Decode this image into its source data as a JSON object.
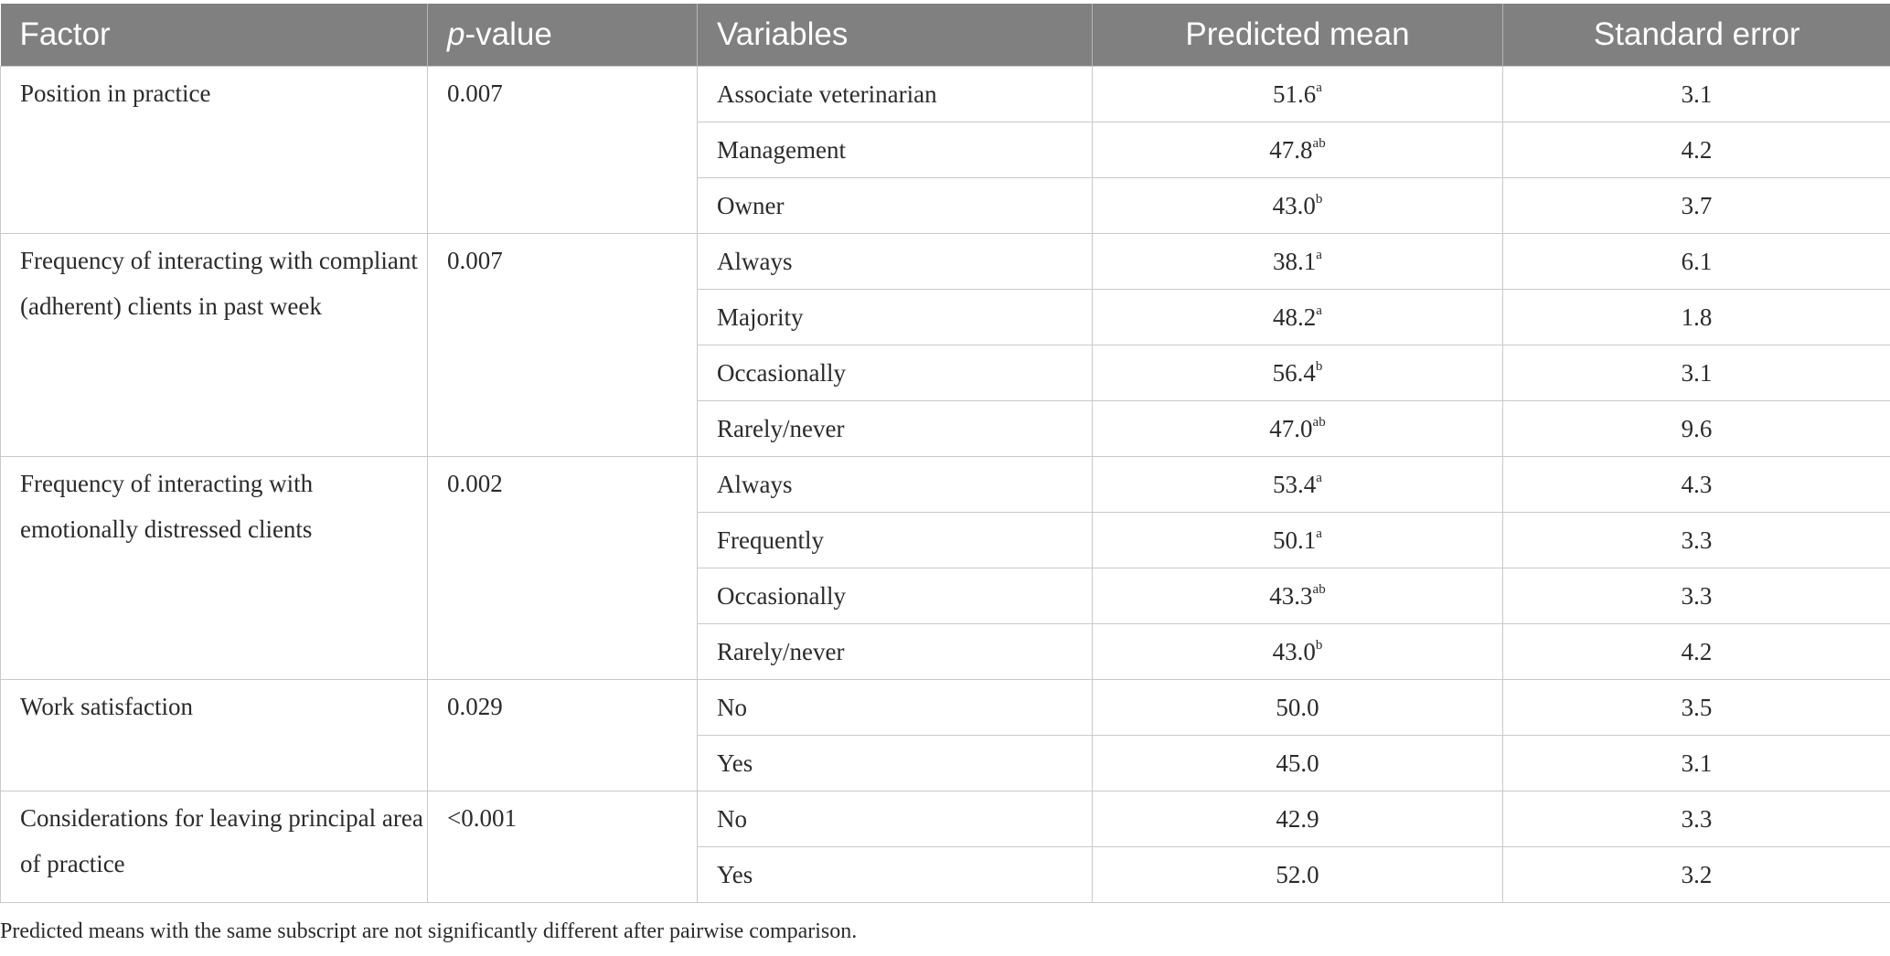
{
  "table": {
    "headers": {
      "factor": "Factor",
      "p_value_p": "p",
      "p_value_rest": "-value",
      "variables": "Variables",
      "predicted_mean": "Predicted mean",
      "standard_error": "Standard error"
    },
    "groups": [
      {
        "factor": "Position in practice",
        "p_value": "0.007",
        "rows": [
          {
            "variable": "Associate veterinarian",
            "mean": "51.6",
            "sup": "a",
            "se": "3.1"
          },
          {
            "variable": "Management",
            "mean": "47.8",
            "sup": "ab",
            "se": "4.2"
          },
          {
            "variable": "Owner",
            "mean": "43.0",
            "sup": "b",
            "se": "3.7"
          }
        ]
      },
      {
        "factor": "Frequency of interacting with compliant (adherent) clients in past week",
        "p_value": "0.007",
        "rows": [
          {
            "variable": "Always",
            "mean": "38.1",
            "sup": "a",
            "se": "6.1"
          },
          {
            "variable": "Majority",
            "mean": "48.2",
            "sup": "a",
            "se": "1.8"
          },
          {
            "variable": "Occasionally",
            "mean": "56.4",
            "sup": "b",
            "se": "3.1"
          },
          {
            "variable": "Rarely/never",
            "mean": "47.0",
            "sup": "ab",
            "se": "9.6"
          }
        ]
      },
      {
        "factor": "Frequency of interacting with emotionally distressed clients",
        "p_value": "0.002",
        "rows": [
          {
            "variable": "Always",
            "mean": "53.4",
            "sup": "a",
            "se": "4.3"
          },
          {
            "variable": "Frequently",
            "mean": "50.1",
            "sup": "a",
            "se": "3.3"
          },
          {
            "variable": "Occasionally",
            "mean": "43.3",
            "sup": "ab",
            "se": "3.3"
          },
          {
            "variable": "Rarely/never",
            "mean": "43.0",
            "sup": "b",
            "se": "4.2"
          }
        ]
      },
      {
        "factor": "Work satisfaction",
        "p_value": "0.029",
        "rows": [
          {
            "variable": "No",
            "mean": "50.0",
            "sup": "",
            "se": "3.5"
          },
          {
            "variable": "Yes",
            "mean": "45.0",
            "sup": "",
            "se": "3.1"
          }
        ]
      },
      {
        "factor": "Considerations for leaving principal area of practice",
        "p_value": "<0.001",
        "rows": [
          {
            "variable": "No",
            "mean": "42.9",
            "sup": "",
            "se": "3.3"
          },
          {
            "variable": "Yes",
            "mean": "52.0",
            "sup": "",
            "se": "3.2"
          }
        ]
      }
    ]
  },
  "footnote": "Predicted means with the same subscript are not significantly different after pairwise comparison."
}
